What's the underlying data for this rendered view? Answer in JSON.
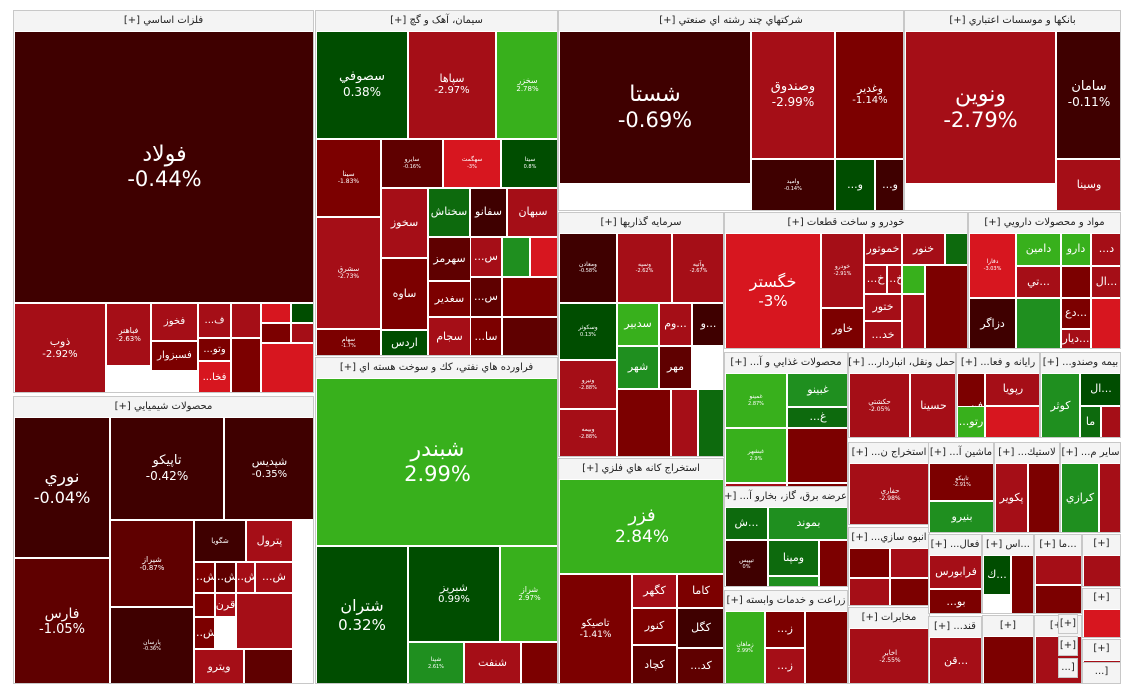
{
  "colors": {
    "c1": "#3f0000",
    "c2": "#5f0000",
    "c3": "#7c0000",
    "c4": "#a50e17",
    "c5": "#d7161f",
    "g1": "#004d00",
    "g2": "#0d6a0d",
    "g3": "#1f8f1f",
    "g4": "#38b01c",
    "g5": "#3ebc1a"
  },
  "sectors": [
    {
      "title": "فلزات اساسي [+]",
      "tiles": [
        {
          "sym": "فولاد",
          "pct": "-0.44%",
          "color": "c1"
        },
        {
          "sym": "ذوب",
          "pct": "-2.92%",
          "color": "c4"
        },
        {
          "sym": "فباهنر",
          "pct": "-2.63%",
          "color": "c4"
        },
        {
          "sym": "فخوز",
          "pct": "",
          "color": "c4"
        },
        {
          "sym": "فسبزوار",
          "pct": "",
          "color": "c3"
        },
        {
          "sym": "ف...",
          "pct": "",
          "color": "c4"
        },
        {
          "sym": "وتو...",
          "pct": "",
          "color": "c3"
        },
        {
          "sym": "فخا...",
          "pct": "",
          "color": "c5"
        },
        {
          "sym": "",
          "pct": "",
          "color": "c4"
        },
        {
          "sym": "",
          "pct": "",
          "color": "c5"
        },
        {
          "sym": "",
          "pct": "",
          "color": "g1"
        },
        {
          "sym": "",
          "pct": "",
          "color": "c3"
        },
        {
          "sym": "",
          "pct": "",
          "color": "c4"
        },
        {
          "sym": "",
          "pct": "",
          "color": "c3"
        },
        {
          "sym": "",
          "pct": "",
          "color": "c5"
        }
      ]
    },
    {
      "title": "سيمان، آهک و گچ [+]",
      "tiles": [
        {
          "sym": "سصوفي",
          "pct": "0.38%",
          "color": "g1"
        },
        {
          "sym": "سپاها",
          "pct": "-2.97%",
          "color": "c4"
        },
        {
          "sym": "سخزر",
          "pct": "2.78%",
          "color": "g4"
        },
        {
          "sym": "سينا",
          "pct": "-1.83%",
          "color": "c3"
        },
        {
          "sym": "سايرو",
          "pct": "-0.16%",
          "color": "c2"
        },
        {
          "sym": "سهگمت",
          "pct": "-3%",
          "color": "c5"
        },
        {
          "sym": "سيتا",
          "pct": "0.8%",
          "color": "g1"
        },
        {
          "sym": "سخوز",
          "pct": "",
          "color": "c4"
        },
        {
          "sym": "سختاش",
          "pct": "",
          "color": "g2"
        },
        {
          "sym": "سفانو",
          "pct": "",
          "color": "c1"
        },
        {
          "sym": "سبهان",
          "pct": "",
          "color": "c4"
        },
        {
          "sym": "سشرق",
          "pct": "-2.73%",
          "color": "c4"
        },
        {
          "sym": "ساوه",
          "pct": "",
          "color": "c3"
        },
        {
          "sym": "سهرمز",
          "pct": "",
          "color": "c2"
        },
        {
          "sym": "سغدير",
          "pct": "",
          "color": "c3"
        },
        {
          "sym": "سجام",
          "pct": "",
          "color": "c4"
        },
        {
          "sym": "سهام",
          "pct": "-1.7%",
          "color": "c3"
        },
        {
          "sym": "اردس",
          "pct": "",
          "color": "g1"
        },
        {
          "sym": "س...",
          "pct": "",
          "color": "c4"
        },
        {
          "sym": "س...",
          "pct": "",
          "color": "c2"
        },
        {
          "sym": "سا...",
          "pct": "",
          "color": "c3"
        },
        {
          "sym": "",
          "pct": "",
          "color": "g3"
        },
        {
          "sym": "",
          "pct": "",
          "color": "c5"
        },
        {
          "sym": "",
          "pct": "",
          "color": "c3"
        },
        {
          "sym": "",
          "pct": "",
          "color": "c2"
        }
      ]
    },
    {
      "title": "شرکتهاي چند رشته اي صنعتي [+]",
      "tiles": [
        {
          "sym": "شستا",
          "pct": "-0.69%",
          "color": "c1"
        },
        {
          "sym": "وصندوق",
          "pct": "-2.99%",
          "color": "c4"
        },
        {
          "sym": "وغدير",
          "pct": "-1.14%",
          "color": "c3"
        },
        {
          "sym": "وامید",
          "pct": "-0.14%",
          "color": "c1"
        },
        {
          "sym": "و...",
          "pct": "",
          "color": "g1"
        },
        {
          "sym": "و...",
          "pct": "",
          "color": "c1"
        }
      ]
    },
    {
      "title": "بانکها و موسسات اعتباري [+]",
      "tiles": [
        {
          "sym": "ونوين",
          "pct": "-2.79%",
          "color": "c4"
        },
        {
          "sym": "سامان",
          "pct": "-0.11%",
          "color": "c1"
        },
        {
          "sym": "وسينا",
          "pct": "",
          "color": "c4"
        }
      ]
    },
    {
      "title": "سرمايه گذاريها [+]",
      "tiles": [
        {
          "sym": "ومعادن",
          "pct": "-0.58%",
          "color": "c1"
        },
        {
          "sym": "وسپه",
          "pct": "-2.62%",
          "color": "c4"
        },
        {
          "sym": "وآتيه",
          "pct": "-2.67%",
          "color": "c4"
        },
        {
          "sym": "وسكوثر",
          "pct": "0.13%",
          "color": "g1"
        },
        {
          "sym": "سدبير",
          "pct": "",
          "color": "g4"
        },
        {
          "sym": "...وم",
          "pct": "",
          "color": "c4"
        },
        {
          "sym": "...و",
          "pct": "",
          "color": "c1"
        },
        {
          "sym": "شهر",
          "pct": "",
          "color": "g3"
        },
        {
          "sym": "مهر",
          "pct": "",
          "color": "c2"
        },
        {
          "sym": "ونيرو",
          "pct": "-2.88%",
          "color": "c4"
        },
        {
          "sym": "وبيمه",
          "pct": "-2.88%",
          "color": "c4"
        },
        {
          "sym": "",
          "pct": "",
          "color": "c3"
        },
        {
          "sym": "",
          "pct": "",
          "color": "c4"
        },
        {
          "sym": "",
          "pct": "",
          "color": "g2"
        }
      ]
    },
    {
      "title": "خودرو و ساخت قطعات [+]",
      "tiles": [
        {
          "sym": "خگستر",
          "pct": "-3%",
          "color": "c5"
        },
        {
          "sym": "خودرو",
          "pct": "-2.91%",
          "color": "c4"
        },
        {
          "sym": "خاور",
          "pct": "",
          "color": "c3"
        },
        {
          "sym": "خموتور",
          "pct": "",
          "color": "c4"
        },
        {
          "sym": "خنور",
          "pct": "",
          "color": "c4"
        },
        {
          "sym": "خ...",
          "pct": "",
          "color": "c4"
        },
        {
          "sym": "خ...",
          "pct": "",
          "color": "c4"
        },
        {
          "sym": "",
          "pct": "",
          "color": "g4"
        },
        {
          "sym": "ختور",
          "pct": "",
          "color": "c4"
        },
        {
          "sym": "خد...",
          "pct": "",
          "color": "c4"
        },
        {
          "sym": "",
          "pct": "",
          "color": "c3"
        },
        {
          "sym": "",
          "pct": "",
          "color": "c4"
        },
        {
          "sym": "",
          "pct": "",
          "color": "g2"
        }
      ]
    },
    {
      "title": "مواد و محصولات دارويي [+]",
      "tiles": [
        {
          "sym": "دفارا",
          "pct": "-3.03%",
          "color": "c5"
        },
        {
          "sym": "دامين",
          "pct": "",
          "color": "g4"
        },
        {
          "sym": "دارو",
          "pct": "",
          "color": "g4"
        },
        {
          "sym": "د...",
          "pct": "",
          "color": "c4"
        },
        {
          "sym": "...تي",
          "pct": "",
          "color": "c4"
        },
        {
          "sym": "...ال",
          "pct": "",
          "color": "c4"
        },
        {
          "sym": "...دع",
          "pct": "",
          "color": "c3"
        },
        {
          "sym": "دزاگر",
          "pct": "",
          "color": "c1"
        },
        {
          "sym": "...ديار",
          "pct": "",
          "color": "c4"
        },
        {
          "sym": "",
          "pct": "",
          "color": "g3"
        },
        {
          "sym": "",
          "pct": "",
          "color": "c5"
        },
        {
          "sym": "",
          "pct": "",
          "color": "c3"
        }
      ]
    },
    {
      "title": "فراورده هاي نفتي، كك و سوخت هسته اي [+]",
      "tiles": [
        {
          "sym": "شبندر",
          "pct": "2.99%",
          "color": "g4"
        },
        {
          "sym": "شتران",
          "pct": "0.32%",
          "color": "g1"
        },
        {
          "sym": "شبريز",
          "pct": "0.99%",
          "color": "g1"
        },
        {
          "sym": "شراز",
          "pct": "2.97%",
          "color": "g4"
        },
        {
          "sym": "شپنا",
          "pct": "2.61%",
          "color": "g3"
        },
        {
          "sym": "شنفت",
          "pct": "",
          "color": "c4"
        },
        {
          "sym": "",
          "pct": "",
          "color": "c3"
        },
        {
          "sym": "",
          "pct": "",
          "color": "c4"
        }
      ]
    },
    {
      "title": "محصولات شيميايي [+]",
      "tiles": [
        {
          "sym": "نوري",
          "pct": "-0.04%",
          "color": "c1"
        },
        {
          "sym": "تاپيكو",
          "pct": "-0.42%",
          "color": "c1"
        },
        {
          "sym": "شپديس",
          "pct": "-0.35%",
          "color": "c1"
        },
        {
          "sym": "فارس",
          "pct": "-1.05%",
          "color": "c2"
        },
        {
          "sym": "شيراز",
          "pct": "-0.87%",
          "color": "c2"
        },
        {
          "sym": "پارسان",
          "pct": "-0.36%",
          "color": "c1"
        },
        {
          "sym": "شگويا",
          "pct": "",
          "color": "c1"
        },
        {
          "sym": "پترول",
          "pct": "",
          "color": "c4"
        },
        {
          "sym": "ش...",
          "pct": "",
          "color": "c3"
        },
        {
          "sym": "ش...",
          "pct": "",
          "color": "c2"
        },
        {
          "sym": "ش...",
          "pct": "",
          "color": "c4"
        },
        {
          "sym": "ش...",
          "pct": "",
          "color": "c4"
        },
        {
          "sym": "قرن",
          "pct": "",
          "color": "c4"
        },
        {
          "sym": "ش...",
          "pct": "",
          "color": "c3"
        },
        {
          "sym": "ويترو",
          "pct": "",
          "color": "c4"
        },
        {
          "sym": "",
          "pct": "",
          "color": "c3"
        },
        {
          "sym": "",
          "pct": "",
          "color": "c4"
        },
        {
          "sym": "",
          "pct": "",
          "color": "c2"
        }
      ]
    },
    {
      "title": "استخراج کانه هاي فلزي [+]",
      "tiles": [
        {
          "sym": "فزر",
          "pct": "2.84%",
          "color": "g4"
        },
        {
          "sym": "تاصيكو",
          "pct": "-1.41%",
          "color": "c3"
        },
        {
          "sym": "كگهر",
          "pct": "",
          "color": "c4"
        },
        {
          "sym": "كاما",
          "pct": "",
          "color": "c3"
        },
        {
          "sym": "كنور",
          "pct": "",
          "color": "c3"
        },
        {
          "sym": "كگل",
          "pct": "",
          "color": "c1"
        },
        {
          "sym": "كچاد",
          "pct": "",
          "color": "c2"
        },
        {
          "sym": "كد...",
          "pct": "",
          "color": "c2"
        },
        {
          "sym": "",
          "pct": "",
          "color": "c3"
        }
      ]
    },
    {
      "title": "محصولات غذايي و آ... [+]",
      "tiles": [
        {
          "sym": "غمينو",
          "pct": "2.87%",
          "color": "g4"
        },
        {
          "sym": "غبينو",
          "pct": "",
          "color": "g3"
        },
        {
          "sym": "غ...",
          "pct": "",
          "color": "g2"
        },
        {
          "sym": "غبشهر",
          "pct": "2.9%",
          "color": "g4"
        },
        {
          "sym": "",
          "pct": "",
          "color": "c3"
        },
        {
          "sym": "",
          "pct": "",
          "color": "c4"
        },
        {
          "sym": "",
          "pct": "",
          "color": "c3"
        }
      ]
    },
    {
      "title": "حمل ونقل، انباردار... [+]",
      "tiles": [
        {
          "sym": "حكشتي",
          "pct": "-2.05%",
          "color": "c4"
        },
        {
          "sym": "حسينا",
          "pct": "",
          "color": "c4"
        },
        {
          "sym": "",
          "pct": "",
          "color": "c3"
        },
        {
          "sym": "",
          "pct": "",
          "color": "c4"
        }
      ]
    },
    {
      "title": "رايانه و فعا... [+]",
      "tiles": [
        {
          "sym": "فن...",
          "pct": "",
          "color": "c3"
        },
        {
          "sym": "رتو...",
          "pct": "",
          "color": "g4"
        },
        {
          "sym": "رپويا",
          "pct": "",
          "color": "c4"
        },
        {
          "sym": "",
          "pct": "",
          "color": "c5"
        }
      ]
    },
    {
      "title": "بيمه وصندو... [+]",
      "tiles": [
        {
          "sym": "كوثر",
          "pct": "",
          "color": "g3"
        },
        {
          "sym": "...ال",
          "pct": "",
          "color": "g1"
        },
        {
          "sym": "ما",
          "pct": "",
          "color": "g2"
        },
        {
          "sym": "",
          "pct": "",
          "color": "c4"
        }
      ]
    },
    {
      "title": "عرضه برق، گاز، بخارو آ... [+]",
      "tiles": [
        {
          "sym": "بموند",
          "pct": "",
          "color": "g3"
        },
        {
          "sym": "...ش",
          "pct": "",
          "color": "g2"
        },
        {
          "sym": "ومپنا",
          "pct": "",
          "color": "g2"
        },
        {
          "sym": "تيپيس",
          "pct": "0%",
          "color": "c1"
        },
        {
          "sym": "",
          "pct": "",
          "color": "c3"
        },
        {
          "sym": "",
          "pct": "",
          "color": "g3"
        }
      ]
    },
    {
      "title": "انبوه سازي... [+]",
      "tiles": [
        {
          "sym": "",
          "pct": "",
          "color": "c3"
        },
        {
          "sym": "",
          "pct": "",
          "color": "c4"
        },
        {
          "sym": "",
          "pct": "",
          "color": "c4"
        },
        {
          "sym": "",
          "pct": "",
          "color": "c3"
        }
      ]
    },
    {
      "title": "استخراج ن... [+]",
      "tiles": [
        {
          "sym": "حفاري",
          "pct": "-2.98%",
          "color": "c4"
        }
      ]
    },
    {
      "title": "ماشين آ... [+]",
      "tiles": [
        {
          "sym": "تاپيكو",
          "pct": "-2.91%",
          "color": "c3"
        },
        {
          "sym": "بنيرو",
          "pct": "",
          "color": "g3"
        }
      ]
    },
    {
      "title": "لاستيك... [+]",
      "tiles": [
        {
          "sym": "پكوير",
          "pct": "",
          "color": "c4"
        },
        {
          "sym": "",
          "pct": "",
          "color": "c3"
        }
      ]
    },
    {
      "title": "ساير م... [+]",
      "tiles": [
        {
          "sym": "كرازي",
          "pct": "",
          "color": "g3"
        },
        {
          "sym": "",
          "pct": "",
          "color": "c4"
        }
      ]
    },
    {
      "title": "زراعت و خدمات وابسته [+]",
      "tiles": [
        {
          "sym": "زماهان",
          "pct": "2.99%",
          "color": "g4"
        },
        {
          "sym": "ز...",
          "pct": "",
          "color": "c3"
        },
        {
          "sym": "ز...",
          "pct": "",
          "color": "c4"
        },
        {
          "sym": "",
          "pct": "",
          "color": "c3"
        }
      ]
    },
    {
      "title": "مخابرات [+]",
      "tiles": [
        {
          "sym": "اخابر",
          "pct": "-2.55%",
          "color": "c4"
        }
      ]
    },
    {
      "title": "فعال... [+]",
      "tiles": [
        {
          "sym": "فرابورس",
          "pct": "",
          "color": "c4"
        },
        {
          "sym": "بو...",
          "pct": "",
          "color": "c3"
        }
      ]
    },
    {
      "title": "...اس [+]",
      "tiles": [
        {
          "sym": "...ك",
          "pct": "",
          "color": "g1"
        },
        {
          "sym": "",
          "pct": "",
          "color": "c3"
        }
      ]
    },
    {
      "title": "...ما [+]",
      "tiles": [
        {
          "sym": "",
          "pct": "",
          "color": "c4"
        },
        {
          "sym": "",
          "pct": "",
          "color": "c3"
        }
      ]
    },
    {
      "title": "[+]",
      "tiles": [
        {
          "sym": "",
          "pct": "",
          "color": "c4"
        }
      ]
    },
    {
      "title": "قند... [+]",
      "tiles": [
        {
          "sym": "...قن",
          "pct": "",
          "color": "c4"
        }
      ]
    },
    {
      "title": "[+]",
      "tiles": [
        {
          "sym": "",
          "pct": "",
          "color": "c3"
        }
      ]
    },
    {
      "title": "[+]",
      "tiles": [
        {
          "sym": "",
          "pct": "",
          "color": "c4"
        }
      ]
    },
    {
      "title": "[+]",
      "tiles": [
        {
          "sym": "",
          "pct": "",
          "color": "c5"
        }
      ]
    },
    {
      "title": "[+]",
      "tiles": [
        {
          "sym": "",
          "pct": "",
          "color": "c4"
        }
      ]
    },
    {
      "title": "[+]",
      "tiles": [
        {
          "sym": "",
          "pct": "",
          "color": "c3"
        }
      ]
    },
    {
      "title": "[+]",
      "tiles": [
        {
          "sym": "",
          "pct": "",
          "color": "c2"
        }
      ]
    },
    {
      "title": "[...",
      "tiles": []
    },
    {
      "title": "[...",
      "tiles": []
    },
    {
      "title": "[...",
      "tiles": []
    },
    {
      "title": "[+]",
      "tiles": [
        {
          "sym": "",
          "pct": "",
          "color": "c4"
        }
      ]
    }
  ]
}
